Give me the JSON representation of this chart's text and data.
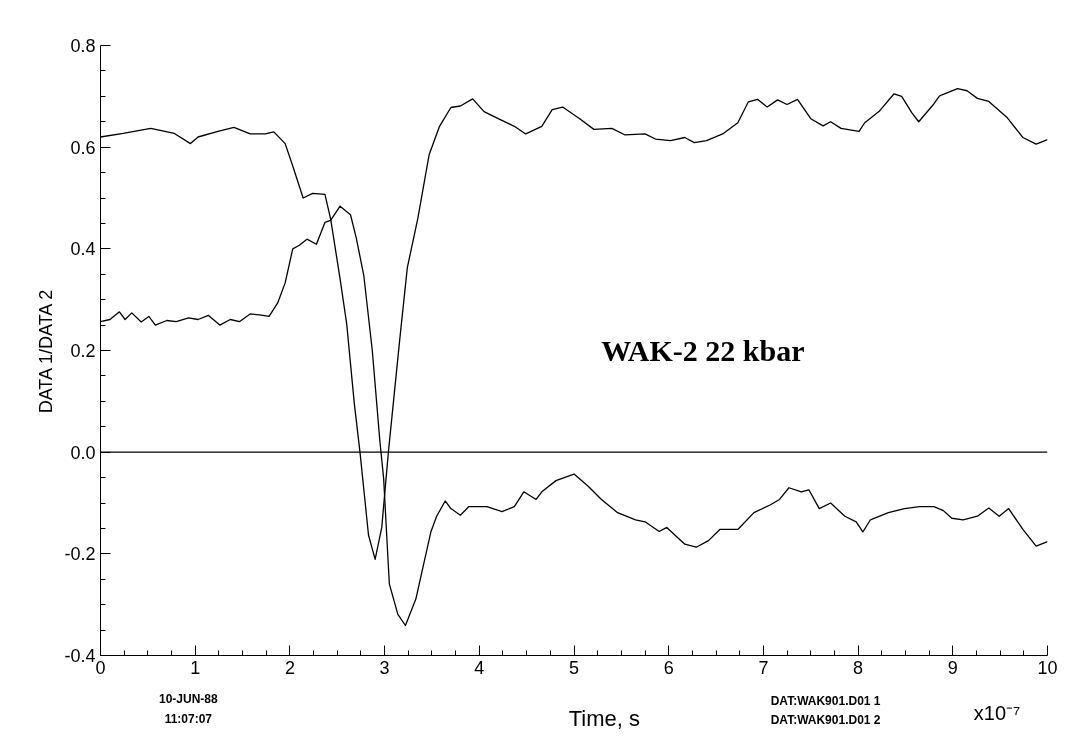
{
  "chart_data": {
    "type": "line",
    "xlabel": "Time, s",
    "ylabel": "DATA 1/DATA 2",
    "annotations": [
      "WAK-2  22 kbar",
      "10-JUN-88",
      "11:07:07",
      "DAT:WAK901.D01     1",
      "DAT:WAK901.D01     2",
      "x10⁻⁷"
    ],
    "xlim": [
      0,
      10
    ],
    "xticks": [
      0,
      1,
      2,
      3,
      4,
      5,
      6,
      7,
      8,
      9,
      10
    ],
    "ylim": [
      -0.4,
      0.8
    ],
    "yticks": [
      {
        "value": -0.4,
        "label": "-0.4"
      },
      {
        "value": -0.2,
        "label": "-0.2"
      },
      {
        "value": 0,
        "label": "0.0"
      },
      {
        "value": 0.2,
        "label": "0.2"
      },
      {
        "value": 0.4,
        "label": "0.4"
      },
      {
        "value": 0.6,
        "label": "0.6"
      },
      {
        "value": 0.8,
        "label": "0.8"
      }
    ],
    "grid": false,
    "marker": "none",
    "line_style": "solid",
    "ref_lines": [
      {
        "axis": "y",
        "value": 0,
        "color": "#000000"
      }
    ],
    "series": [
      {
        "color": "#000000",
        "x": [
          0,
          0.24,
          0.53,
          0.78,
          0.95,
          1.03,
          1.24,
          1.41,
          1.58,
          1.74,
          1.83,
          1.95,
          2.03,
          2.14,
          2.24,
          2.37,
          2.43,
          2.53,
          2.6,
          2.68,
          2.74,
          2.83,
          2.9,
          2.97,
          3.04,
          3.16,
          3.24,
          3.35,
          3.47,
          3.58,
          3.7,
          3.8,
          3.93,
          4.05,
          4.2,
          4.37,
          4.49,
          4.66,
          4.77,
          4.88,
          5.06,
          5.21,
          5.4,
          5.54,
          5.75,
          5.86,
          6.02,
          6.17,
          6.27,
          6.4,
          6.57,
          6.73,
          6.84,
          6.94,
          7.04,
          7.15,
          7.25,
          7.36,
          7.5,
          7.63,
          7.71,
          7.82,
          8.01,
          8.07,
          8.22,
          8.38,
          8.46,
          8.57,
          8.64,
          8.8,
          8.86,
          9.05,
          9.15,
          9.26,
          9.38,
          9.57,
          9.74,
          9.88,
          10.0
        ],
        "values": [
          0.62,
          0.627,
          0.637,
          0.627,
          0.607,
          0.62,
          0.631,
          0.639,
          0.626,
          0.626,
          0.63,
          0.607,
          0.563,
          0.5,
          0.509,
          0.507,
          0.459,
          0.341,
          0.252,
          0.096,
          0,
          -0.163,
          -0.211,
          -0.148,
          0,
          0.222,
          0.363,
          0.459,
          0.585,
          0.641,
          0.678,
          0.681,
          0.695,
          0.67,
          0.656,
          0.641,
          0.626,
          0.641,
          0.674,
          0.679,
          0.656,
          0.635,
          0.637,
          0.624,
          0.626,
          0.616,
          0.613,
          0.619,
          0.609,
          0.613,
          0.626,
          0.648,
          0.689,
          0.694,
          0.679,
          0.693,
          0.684,
          0.694,
          0.656,
          0.642,
          0.65,
          0.637,
          0.631,
          0.648,
          0.67,
          0.705,
          0.7,
          0.667,
          0.65,
          0.685,
          0.701,
          0.715,
          0.711,
          0.696,
          0.69,
          0.659,
          0.619,
          0.606,
          0.615
        ]
      },
      {
        "color": "#000000",
        "x": [
          0,
          0.1,
          0.2,
          0.26,
          0.33,
          0.43,
          0.51,
          0.58,
          0.7,
          0.8,
          0.93,
          1.03,
          1.14,
          1.26,
          1.37,
          1.47,
          1.58,
          1.68,
          1.78,
          1.87,
          1.95,
          2.03,
          2.1,
          2.18,
          2.28,
          2.37,
          2.43,
          2.53,
          2.64,
          2.7,
          2.78,
          2.87,
          2.95,
          2.99,
          3.05,
          3.14,
          3.22,
          3.33,
          3.41,
          3.49,
          3.55,
          3.64,
          3.7,
          3.8,
          3.89,
          4.08,
          4.24,
          4.37,
          4.47,
          4.6,
          4.66,
          4.81,
          5.0,
          5.15,
          5.29,
          5.46,
          5.65,
          5.75,
          5.9,
          5.98,
          6.17,
          6.29,
          6.42,
          6.54,
          6.73,
          6.9,
          7.07,
          7.17,
          7.27,
          7.4,
          7.48,
          7.59,
          7.71,
          7.86,
          7.98,
          8.05,
          8.13,
          8.32,
          8.49,
          8.65,
          8.8,
          8.9,
          8.99,
          9.11,
          9.26,
          9.38,
          9.49,
          9.59,
          9.74,
          9.88,
          10.0
        ],
        "values": [
          0.257,
          0.261,
          0.276,
          0.261,
          0.274,
          0.256,
          0.267,
          0.25,
          0.259,
          0.257,
          0.264,
          0.261,
          0.269,
          0.25,
          0.261,
          0.257,
          0.272,
          0.27,
          0.267,
          0.293,
          0.333,
          0.4,
          0.407,
          0.419,
          0.409,
          0.452,
          0.456,
          0.484,
          0.467,
          0.422,
          0.348,
          0.2,
          0.022,
          -0.052,
          -0.259,
          -0.319,
          -0.341,
          -0.289,
          -0.222,
          -0.156,
          -0.126,
          -0.096,
          -0.111,
          -0.124,
          -0.107,
          -0.107,
          -0.117,
          -0.107,
          -0.078,
          -0.093,
          -0.078,
          -0.056,
          -0.043,
          -0.067,
          -0.093,
          -0.119,
          -0.133,
          -0.137,
          -0.156,
          -0.148,
          -0.181,
          -0.187,
          -0.174,
          -0.152,
          -0.152,
          -0.119,
          -0.104,
          -0.093,
          -0.07,
          -0.078,
          -0.074,
          -0.111,
          -0.1,
          -0.126,
          -0.137,
          -0.157,
          -0.133,
          -0.119,
          -0.111,
          -0.107,
          -0.107,
          -0.115,
          -0.13,
          -0.133,
          -0.126,
          -0.11,
          -0.126,
          -0.111,
          -0.152,
          -0.185,
          -0.176
        ]
      }
    ]
  }
}
